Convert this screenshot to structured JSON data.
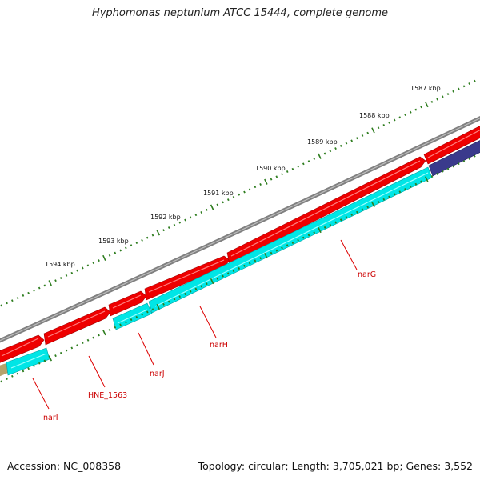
{
  "title": "Hyphomonas neptunium ATCC 15444, complete genome",
  "footer": {
    "accession": "Accession: NC_008358",
    "summary": "Topology: circular; Length: 3,705,021 bp; Genes: 3,552"
  },
  "ruler": {
    "labels": [
      "1587 kbp",
      "1588 kbp",
      "1589 kbp",
      "1590 kbp",
      "1591 kbp",
      "1592 kbp",
      "1593 kbp",
      "1594 kbp"
    ],
    "color": "#2e7d1f"
  },
  "tracks": {
    "backbone_color": "#808080",
    "forward_color": "#ee0000",
    "reverse_color": "#00e6e6",
    "other_color": "#3a3a8c",
    "partial_color": "#b5a36b"
  },
  "genes": [
    {
      "name": "narG"
    },
    {
      "name": "narH"
    },
    {
      "name": "narJ"
    },
    {
      "name": "HNE_1563"
    },
    {
      "name": "narI"
    }
  ]
}
